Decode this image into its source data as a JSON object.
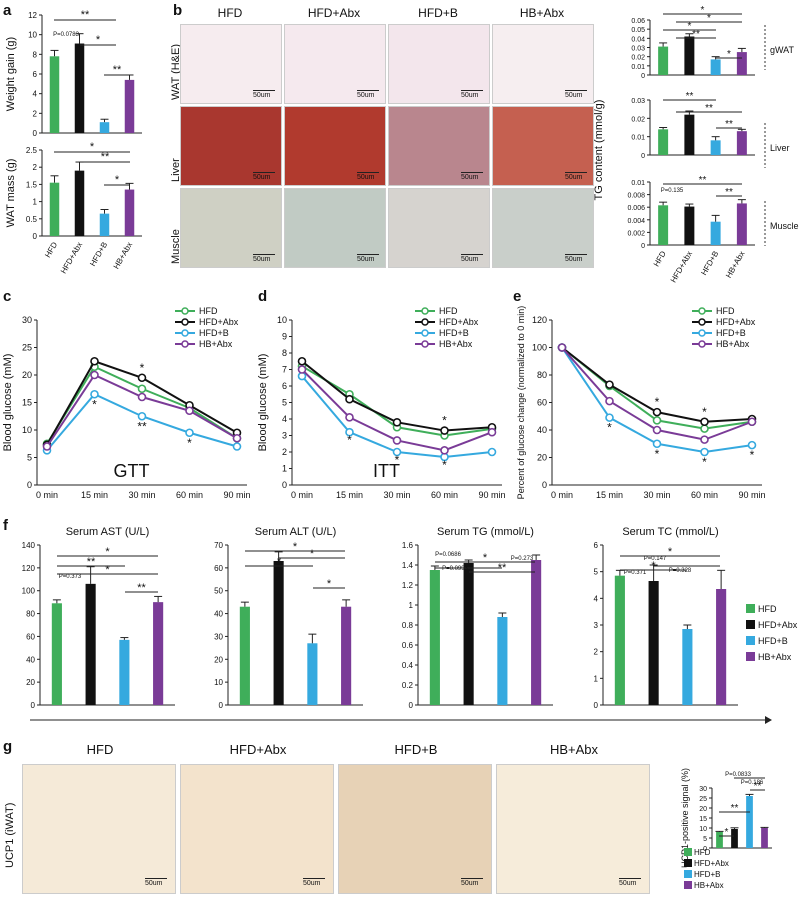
{
  "labels": {
    "a": "a",
    "b": "b",
    "c": "c",
    "d": "d",
    "e": "e",
    "f": "f",
    "g": "g"
  },
  "groups": [
    "HFD",
    "HFD+Abx",
    "HFD+B",
    "HB+Abx"
  ],
  "colors": {
    "HFD": "#3fae5a",
    "HFD+Abx": "#111111",
    "HFD+B": "#35a9df",
    "HB+Abx": "#7a3b97"
  },
  "scale_bar": "50um",
  "panel_b": {
    "row_labels": [
      "WAT (H&E)",
      "Liver",
      "Muscle"
    ],
    "tg_ylabel": "TG content (mmol/g)",
    "tg_tissues": [
      "gWAT",
      "Liver",
      "Muscle"
    ],
    "tg_pval": "P=0.135"
  },
  "chart_data": [
    {
      "id": "a_weight",
      "type": "bar",
      "categories": [
        "HFD",
        "HFD+Abx",
        "HFD+B",
        "HB+Abx"
      ],
      "values": [
        7.8,
        9.1,
        1.1,
        5.4
      ],
      "errors": [
        0.6,
        1.0,
        0.3,
        0.5
      ],
      "ylabel": "Weight gain (g)",
      "ylim": [
        0,
        12
      ],
      "yticks": [
        0,
        2,
        4,
        6,
        8,
        10,
        12
      ],
      "annotations": [
        "**",
        "*",
        "**",
        "P=0.0783"
      ]
    },
    {
      "id": "a_wat",
      "type": "bar",
      "categories": [
        "HFD",
        "HFD+Abx",
        "HFD+B",
        "HB+Abx"
      ],
      "values": [
        1.55,
        1.9,
        0.65,
        1.35
      ],
      "errors": [
        0.2,
        0.25,
        0.12,
        0.18
      ],
      "ylabel": "WAT mass (g)",
      "ylim": [
        0,
        2.5
      ],
      "yticks": [
        0,
        0.5,
        1,
        1.5,
        2,
        2.5
      ],
      "annotations": [
        "*",
        "**",
        "*"
      ]
    },
    {
      "id": "b_gwat",
      "type": "bar",
      "categories": [
        "HFD",
        "HFD+Abx",
        "HFD+B",
        "HB+Abx"
      ],
      "values": [
        0.031,
        0.042,
        0.017,
        0.025
      ],
      "errors": [
        0.004,
        0.003,
        0.003,
        0.004
      ],
      "ylim": [
        0,
        0.06
      ],
      "yticks": [
        0,
        0.01,
        0.02,
        0.03,
        0.04,
        0.05,
        0.06
      ],
      "annotations": [
        "*",
        "*",
        "*",
        "**",
        "*"
      ]
    },
    {
      "id": "b_liver",
      "type": "bar",
      "categories": [
        "HFD",
        "HFD+Abx",
        "HFD+B",
        "HB+Abx"
      ],
      "values": [
        0.014,
        0.022,
        0.008,
        0.013
      ],
      "errors": [
        0.001,
        0.002,
        0.002,
        0.001
      ],
      "ylim": [
        0,
        0.03
      ],
      "yticks": [
        0,
        0.01,
        0.02,
        0.03
      ],
      "annotations": [
        "**",
        "**",
        "**"
      ]
    },
    {
      "id": "b_muscle",
      "type": "bar",
      "categories": [
        "HFD",
        "HFD+Abx",
        "HFD+B",
        "HB+Abx"
      ],
      "values": [
        0.0063,
        0.0061,
        0.0037,
        0.0066
      ],
      "errors": [
        0.0005,
        0.0004,
        0.001,
        0.0006
      ],
      "ylim": [
        0,
        0.01
      ],
      "yticks": [
        0,
        0.002,
        0.004,
        0.006,
        0.008,
        0.01
      ],
      "annotations": [
        "**",
        "**"
      ]
    },
    {
      "id": "c_gtt",
      "type": "line",
      "x": [
        "0 min",
        "15 min",
        "30 min",
        "60 min",
        "90 min"
      ],
      "series": [
        {
          "name": "HFD",
          "values": [
            7.5,
            21.5,
            17.5,
            14,
            8.5
          ]
        },
        {
          "name": "HFD+Abx",
          "values": [
            7.3,
            22.5,
            19.5,
            14.5,
            9.5
          ]
        },
        {
          "name": "HFD+B",
          "values": [
            6.3,
            16.5,
            12.5,
            9.5,
            7
          ]
        },
        {
          "name": "HB+Abx",
          "values": [
            7,
            20,
            16,
            13.5,
            8.5
          ]
        }
      ],
      "ylabel": "Blood glucose (mM)",
      "ylim": [
        0,
        30
      ],
      "yticks": [
        0,
        5,
        10,
        15,
        20,
        25,
        30
      ],
      "inner_title": "GTT"
    },
    {
      "id": "d_itt",
      "type": "line",
      "x": [
        "0 min",
        "15 min",
        "30 min",
        "60 min",
        "90 min"
      ],
      "series": [
        {
          "name": "HFD",
          "values": [
            7.2,
            5.5,
            3.5,
            3,
            3.4
          ]
        },
        {
          "name": "HFD+Abx",
          "values": [
            7.5,
            5.2,
            3.8,
            3.3,
            3.5
          ]
        },
        {
          "name": "HFD+B",
          "values": [
            6.6,
            3.2,
            2,
            1.7,
            2
          ]
        },
        {
          "name": "HB+Abx",
          "values": [
            7,
            4.1,
            2.7,
            2.1,
            3.2
          ]
        }
      ],
      "ylabel": "Blood glucose (mM)",
      "ylim": [
        0,
        10
      ],
      "yticks": [
        0,
        1,
        2,
        3,
        4,
        5,
        6,
        7,
        8,
        9,
        10
      ],
      "inner_title": "ITT"
    },
    {
      "id": "e_pct",
      "type": "line",
      "x": [
        "0 min",
        "15 min",
        "30 min",
        "60 min",
        "90 min"
      ],
      "series": [
        {
          "name": "HFD",
          "values": [
            100,
            72,
            47,
            41,
            46
          ]
        },
        {
          "name": "HFD+Abx",
          "values": [
            100,
            73,
            53,
            46,
            48
          ]
        },
        {
          "name": "HFD+B",
          "values": [
            100,
            49,
            30,
            24,
            29
          ]
        },
        {
          "name": "HB+Abx",
          "values": [
            100,
            61,
            40,
            33,
            46
          ]
        }
      ],
      "ylabel": "Percent of glucose change (normalized to 0 min)",
      "ylim": [
        0,
        120
      ],
      "yticks": [
        0,
        20,
        40,
        60,
        80,
        100,
        120
      ]
    },
    {
      "id": "f_ast",
      "type": "bar",
      "title": "Serum AST (U/L)",
      "categories": [
        "HFD",
        "HFD+Abx",
        "HFD+B",
        "HB+Abx"
      ],
      "values": [
        89,
        106,
        57,
        90
      ],
      "errors": [
        3,
        15,
        2,
        5
      ],
      "ylim": [
        0,
        140
      ],
      "yticks": [
        0,
        20,
        40,
        60,
        80,
        100,
        120,
        140
      ],
      "pvals": [
        "P=0.373"
      ]
    },
    {
      "id": "f_alt",
      "type": "bar",
      "title": "Serum ALT (U/L)",
      "categories": [
        "HFD",
        "HFD+Abx",
        "HFD+B",
        "HB+Abx"
      ],
      "values": [
        43,
        63,
        27,
        43
      ],
      "errors": [
        2,
        4,
        4,
        3
      ],
      "ylim": [
        0,
        70
      ],
      "yticks": [
        0,
        10,
        20,
        30,
        40,
        50,
        60,
        70
      ]
    },
    {
      "id": "f_tg",
      "type": "bar",
      "title": "Serum TG (mmol/L)",
      "categories": [
        "HFD",
        "HFD+Abx",
        "HFD+B",
        "HB+Abx"
      ],
      "values": [
        1.35,
        1.42,
        0.88,
        1.45
      ],
      "errors": [
        0.04,
        0.03,
        0.04,
        0.05
      ],
      "ylim": [
        0,
        1.6
      ],
      "yticks": [
        0,
        0.2,
        0.4,
        0.6,
        0.8,
        1,
        1.2,
        1.4,
        1.6
      ],
      "pvals": [
        "P=0.0686",
        "P=0.0993",
        "P=0.273"
      ]
    },
    {
      "id": "f_tc",
      "type": "bar",
      "title": "Serum TC (mmol/L)",
      "categories": [
        "HFD",
        "HFD+Abx",
        "HFD+B",
        "HB+Abx"
      ],
      "values": [
        4.85,
        4.65,
        2.85,
        4.35
      ],
      "errors": [
        0.2,
        0.6,
        0.15,
        0.7
      ],
      "ylim": [
        0,
        6
      ],
      "yticks": [
        0,
        1,
        2,
        3,
        4,
        5,
        6
      ],
      "pvals": [
        "P=0.147",
        "P=0.371",
        "P=0.328"
      ]
    },
    {
      "id": "g_ucp1",
      "type": "bar",
      "categories": [
        "HFD",
        "HFD+Abx",
        "HFD+B",
        "HB+Abx"
      ],
      "values": [
        8,
        9.5,
        26,
        10
      ],
      "errors": [
        0.3,
        0.6,
        0.8,
        0.3
      ],
      "ylabel": "UCP1-positive signal (%)",
      "ylim": [
        0,
        30
      ],
      "yticks": [
        0,
        5,
        10,
        15,
        20,
        25,
        30
      ],
      "pvals": [
        "P=0.0833",
        "P=0.186"
      ]
    }
  ],
  "panel_g": {
    "row_label": "UCP1 (iWAT)"
  }
}
